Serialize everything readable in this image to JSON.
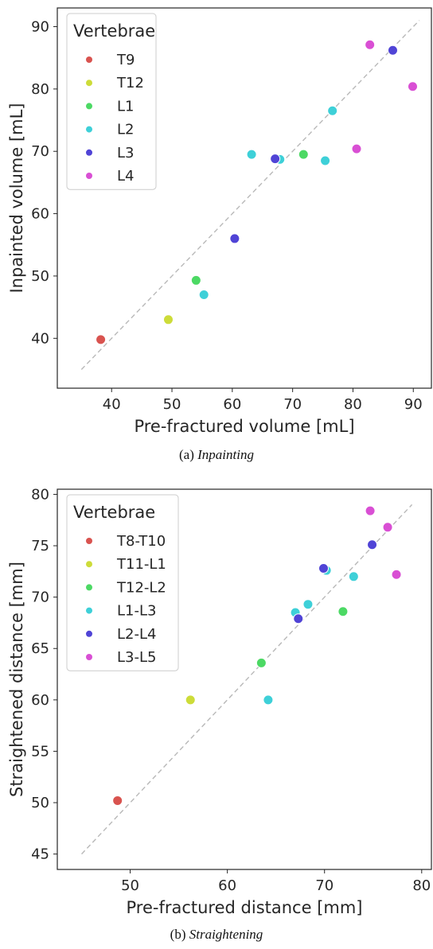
{
  "charts": [
    {
      "caption_prefix": "(a) ",
      "caption_name": "Inpainting",
      "chart_data": {
        "type": "scatter",
        "xlabel": "Pre-fractured volume [mL]",
        "ylabel": "Inpainted volume [mL]",
        "xlim": [
          31,
          93
        ],
        "ylim": [
          32,
          93
        ],
        "xticks": [
          40,
          50,
          60,
          70,
          80,
          90
        ],
        "yticks": [
          40,
          50,
          60,
          70,
          80,
          90
        ],
        "diagonal": [
          35,
          91
        ],
        "grid": false,
        "legend_title": "Vertebrae",
        "legend_position": "top-left",
        "series": [
          {
            "name": "T9",
            "color": "#d9534f",
            "points": [
              [
                38.2,
                39.8
              ]
            ]
          },
          {
            "name": "T12",
            "color": "#cddc39",
            "points": [
              [
                49.4,
                43.0
              ]
            ]
          },
          {
            "name": "L1",
            "color": "#4cd964",
            "points": [
              [
                54.0,
                49.3
              ],
              [
                71.8,
                69.5
              ]
            ]
          },
          {
            "name": "L2",
            "color": "#3ed0d8",
            "points": [
              [
                55.3,
                47.0
              ],
              [
                63.2,
                69.5
              ],
              [
                67.9,
                68.7
              ],
              [
                75.4,
                68.5
              ],
              [
                76.6,
                76.5
              ]
            ]
          },
          {
            "name": "L3",
            "color": "#5044d6",
            "points": [
              [
                60.4,
                56.0
              ],
              [
                67.1,
                68.8
              ],
              [
                86.6,
                86.2
              ]
            ]
          },
          {
            "name": "L4",
            "color": "#d94fd4",
            "points": [
              [
                80.6,
                70.4
              ],
              [
                82.8,
                87.1
              ],
              [
                89.9,
                80.4
              ]
            ]
          }
        ]
      }
    },
    {
      "caption_prefix": "(b) ",
      "caption_name": "Straightening",
      "chart_data": {
        "type": "scatter",
        "xlabel": "Pre-fractured distance [mm]",
        "ylabel": "Straightened distance [mm]",
        "xlim": [
          42.5,
          81
        ],
        "ylim": [
          43.5,
          80.5
        ],
        "xticks": [
          50,
          60,
          70,
          80
        ],
        "yticks": [
          45,
          50,
          55,
          60,
          65,
          70,
          75,
          80
        ],
        "diagonal": [
          45,
          79
        ],
        "grid": false,
        "legend_title": "Vertebrae",
        "legend_position": "top-left",
        "series": [
          {
            "name": "T8-T10",
            "color": "#d9534f",
            "points": [
              [
                48.7,
                50.2
              ]
            ]
          },
          {
            "name": "T11-L1",
            "color": "#cddc39",
            "points": [
              [
                56.2,
                60.0
              ]
            ]
          },
          {
            "name": "T12-L2",
            "color": "#4cd964",
            "points": [
              [
                63.5,
                63.6
              ],
              [
                71.9,
                68.6
              ]
            ]
          },
          {
            "name": "L1-L3",
            "color": "#3ed0d8",
            "points": [
              [
                64.2,
                60.0
              ],
              [
                67.0,
                68.5
              ],
              [
                68.3,
                69.3
              ],
              [
                70.2,
                72.6
              ],
              [
                73.0,
                72.0
              ]
            ]
          },
          {
            "name": "L2-L4",
            "color": "#5044d6",
            "points": [
              [
                67.3,
                67.9
              ],
              [
                69.9,
                72.8
              ],
              [
                74.9,
                75.1
              ]
            ]
          },
          {
            "name": "L3-L5",
            "color": "#d94fd4",
            "points": [
              [
                74.7,
                78.4
              ],
              [
                76.5,
                76.8
              ],
              [
                77.4,
                72.2
              ]
            ]
          }
        ]
      }
    }
  ]
}
